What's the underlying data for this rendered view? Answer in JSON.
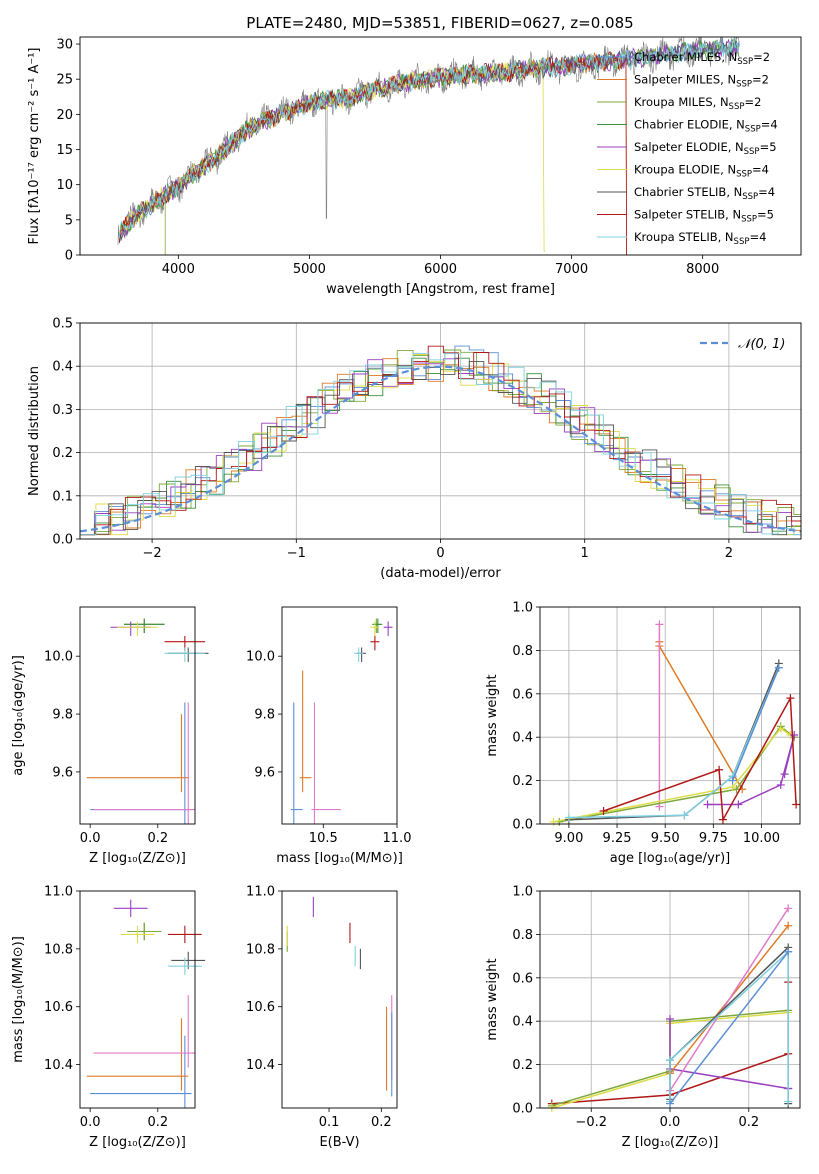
{
  "title": "PLATE=2480, MJD=53851, FIBERID=0627, z=0.085",
  "colors": {
    "Chabrier MILES": "#5b8fd6",
    "Salpeter MILES": "#e07a24",
    "Kroupa MILES": "#7ea83a",
    "Chabrier ELODIE": "#3c8f3c",
    "Salpeter ELODIE": "#9a3fc0",
    "Kroupa ELODIE": "#dcdc4a",
    "Chabrier STELIB": "#555555",
    "Salpeter STELIB": "#b01818",
    "Kroupa STELIB": "#7fd0e0",
    "pink": "#e07ac8",
    "normal": "#5b8fd6",
    "data": "#808080"
  },
  "chart_data": [
    {
      "type": "line",
      "title": "PLATE=2480, MJD=53851, FIBERID=0627, z=0.085",
      "xlabel": "wavelength [Angstrom, rest frame]",
      "ylabel": "Flux [fλ10⁻¹⁷ erg cm⁻² s⁻¹ A⁻¹]",
      "xlim": [
        3250,
        8750
      ],
      "ylim": [
        0,
        31
      ],
      "xticks": [
        "4000",
        "5000",
        "6000",
        "7000",
        "8000"
      ],
      "yticks": [
        "0",
        "5",
        "10",
        "15",
        "20",
        "25",
        "30"
      ],
      "continuum": [
        [
          3540,
          3
        ],
        [
          3700,
          6
        ],
        [
          3900,
          8.5
        ],
        [
          4050,
          10.5
        ],
        [
          4150,
          12
        ],
        [
          4300,
          14
        ],
        [
          4500,
          17.5
        ],
        [
          4700,
          19.5
        ],
        [
          4900,
          21
        ],
        [
          5100,
          22
        ],
        [
          5300,
          22.3
        ],
        [
          5500,
          23.5
        ],
        [
          5700,
          24.5
        ],
        [
          5900,
          25
        ],
        [
          6100,
          25.5
        ],
        [
          6300,
          25.8
        ],
        [
          6500,
          26
        ],
        [
          6700,
          26.5
        ],
        [
          6900,
          26.8
        ],
        [
          7100,
          27.2
        ],
        [
          7300,
          27.5
        ],
        [
          7500,
          28
        ],
        [
          7700,
          28.5
        ],
        [
          7900,
          29
        ],
        [
          8100,
          29.3
        ],
        [
          8300,
          29.5
        ]
      ],
      "legend": [
        "Chabrier MILES, N_SSP=2",
        "Salpeter MILES, N_SSP=2",
        "Kroupa MILES, N_SSP=2",
        "Chabrier ELODIE, N_SSP=4",
        "Salpeter ELODIE, N_SSP=5",
        "Kroupa ELODIE, N_SSP=4",
        "Chabrier STELIB, N_SSP=4",
        "Salpeter STELIB, N_SSP=5",
        "Kroupa STELIB, N_SSP=4"
      ],
      "legend_placement": "right",
      "grid": false
    },
    {
      "type": "line",
      "xlabel": "(data-model)/error",
      "ylabel": "Normed distribution",
      "xlim": [
        -2.5,
        2.5
      ],
      "ylim": [
        0,
        0.5
      ],
      "xticks": [
        "−2",
        "−1",
        "0",
        "1",
        "2"
      ],
      "yticks": [
        "0.0",
        "0.1",
        "0.2",
        "0.3",
        "0.4",
        "0.5"
      ],
      "legend": [
        "𝒩(0, 1)"
      ],
      "legend_placement": "top-right",
      "grid": true
    },
    {
      "type": "scatter",
      "xlabel": "Z [log₁₀(Z/Z⊙)]",
      "ylabel": "age  [log₁₀(age/yr)]",
      "xlim": [
        -0.03,
        0.31
      ],
      "ylim": [
        9.42,
        10.17
      ],
      "xticks": [
        "0.0",
        "0.2"
      ],
      "yticks": [
        "9.6",
        "9.8",
        "10.0"
      ],
      "points": [
        {
          "c": "Chabrier MILES",
          "x": 0.28,
          "y": 9.47
        },
        {
          "c": "Salpeter MILES",
          "x": 0.27,
          "y": 9.58
        },
        {
          "c": "Kroupa MILES",
          "x": 0.16,
          "y": 10.11
        },
        {
          "c": "Chabrier ELODIE",
          "x": 0.16,
          "y": 10.11
        },
        {
          "c": "Salpeter ELODIE",
          "x": 0.12,
          "y": 10.1
        },
        {
          "c": "Kroupa ELODIE",
          "x": 0.14,
          "y": 10.1
        },
        {
          "c": "Chabrier STELIB",
          "x": 0.29,
          "y": 10.01
        },
        {
          "c": "Salpeter STELIB",
          "x": 0.28,
          "y": 10.05
        },
        {
          "c": "Kroupa STELIB",
          "x": 0.28,
          "y": 10.01
        },
        {
          "c": "pink",
          "x": 0.29,
          "y": 9.47
        }
      ]
    },
    {
      "type": "scatter",
      "xlabel": "mass [log₁₀(M/M⊙)]",
      "xlim": [
        10.22,
        11.0
      ],
      "ylim": [
        9.42,
        10.17
      ],
      "xticks": [
        "10.5",
        "11.0"
      ],
      "yticks": [
        "9.6",
        "9.8",
        "10.0"
      ],
      "points": [
        {
          "c": "Chabrier MILES",
          "x": 10.3,
          "y": 9.47
        },
        {
          "c": "Salpeter MILES",
          "x": 10.36,
          "y": 9.58
        },
        {
          "c": "Kroupa MILES",
          "x": 10.86,
          "y": 10.11
        },
        {
          "c": "Chabrier ELODIE",
          "x": 10.87,
          "y": 10.11
        },
        {
          "c": "Salpeter ELODIE",
          "x": 10.94,
          "y": 10.1
        },
        {
          "c": "Kroupa ELODIE",
          "x": 10.85,
          "y": 10.1
        },
        {
          "c": "Chabrier STELIB",
          "x": 10.76,
          "y": 10.01
        },
        {
          "c": "Salpeter STELIB",
          "x": 10.85,
          "y": 10.05
        },
        {
          "c": "Kroupa STELIB",
          "x": 10.74,
          "y": 10.01
        },
        {
          "c": "pink",
          "x": 10.44,
          "y": 9.47
        }
      ]
    },
    {
      "type": "line",
      "xlabel": "age  [log₁₀(age/yr)]",
      "ylabel": "mass weight",
      "xlim": [
        8.85,
        10.2
      ],
      "ylim": [
        0,
        1
      ],
      "xticks": [
        "9.00",
        "9.25",
        "9.50",
        "9.75",
        "10.00"
      ],
      "yticks": [
        "0.0",
        "0.2",
        "0.4",
        "0.6",
        "0.8",
        "1.0"
      ],
      "series": [
        {
          "c": "Salpeter MILES",
          "x": [
            9.47,
            9.47,
            9.9
          ],
          "y": [
            0.84,
            0.82,
            0.16
          ]
        },
        {
          "c": "pink",
          "x": [
            9.47,
            9.47
          ],
          "y": [
            0.92,
            0.08
          ]
        },
        {
          "c": "Kroupa MILES",
          "x": [
            8.95,
            9.87,
            10.1,
            10.17
          ],
          "y": [
            0.01,
            0.16,
            0.45,
            0.4
          ]
        },
        {
          "c": "Kroupa ELODIE",
          "x": [
            8.92,
            9.85,
            10.1,
            10.15
          ],
          "y": [
            0.01,
            0.17,
            0.44,
            0.41
          ]
        },
        {
          "c": "Salpeter ELODIE",
          "x": [
            9.72,
            9.88,
            10.1,
            10.17,
            10.12
          ],
          "y": [
            0.09,
            0.09,
            0.18,
            0.41,
            0.23
          ]
        },
        {
          "c": "Salpeter STELIB",
          "x": [
            9.18,
            9.78,
            9.8,
            10.15,
            10.18
          ],
          "y": [
            0.06,
            0.25,
            0.02,
            0.58,
            0.09
          ]
        },
        {
          "c": "Chabrier STELIB",
          "x": [
            9.0,
            9.6,
            9.85,
            10.09
          ],
          "y": [
            0.02,
            0.04,
            0.22,
            0.74
          ]
        },
        {
          "c": "Kroupa STELIB",
          "x": [
            9.0,
            9.6,
            9.85,
            10.09
          ],
          "y": [
            0.03,
            0.04,
            0.22,
            0.72
          ]
        },
        {
          "c": "Chabrier MILES",
          "x": [
            9.85,
            10.09
          ],
          "y": [
            0.2,
            0.72
          ]
        }
      ],
      "grid": true
    },
    {
      "type": "scatter",
      "xlabel": "Z [log₁₀(Z/Z⊙)]",
      "ylabel": "mass [log₁₀(M/M⊙)]",
      "xlim": [
        -0.03,
        0.31
      ],
      "ylim": [
        10.25,
        11.0
      ],
      "xticks": [
        "0.0",
        "0.2"
      ],
      "yticks": [
        "10.4",
        "10.6",
        "10.8",
        "11.0"
      ],
      "points": [
        {
          "c": "Chabrier MILES",
          "x": 0.28,
          "y": 10.3
        },
        {
          "c": "Salpeter MILES",
          "x": 0.27,
          "y": 10.36
        },
        {
          "c": "pink",
          "x": 0.29,
          "y": 10.44
        },
        {
          "c": "Salpeter ELODIE",
          "x": 0.12,
          "y": 10.94
        },
        {
          "c": "Chabrier ELODIE",
          "x": 0.16,
          "y": 10.86
        },
        {
          "c": "Kroupa MILES",
          "x": 0.16,
          "y": 10.86
        },
        {
          "c": "Kroupa ELODIE",
          "x": 0.14,
          "y": 10.85
        },
        {
          "c": "Salpeter STELIB",
          "x": 0.28,
          "y": 10.85
        },
        {
          "c": "Chabrier STELIB",
          "x": 0.29,
          "y": 10.76
        },
        {
          "c": "Kroupa STELIB",
          "x": 0.28,
          "y": 10.74
        }
      ]
    },
    {
      "type": "scatter",
      "xlabel": "E(B-V)",
      "xlim": [
        0.01,
        0.23
      ],
      "ylim": [
        10.25,
        11.0
      ],
      "xticks": [
        "0.1",
        "0.2"
      ],
      "yticks": [
        "10.4",
        "10.6",
        "10.8",
        "11.0"
      ],
      "points": [
        {
          "c": "Kroupa MILES",
          "x": 0.02,
          "y": 10.82
        },
        {
          "c": "Kroupa ELODIE",
          "x": 0.02,
          "y": 10.84
        },
        {
          "c": "Salpeter ELODIE",
          "x": 0.07,
          "y": 10.94
        },
        {
          "c": "Salpeter STELIB",
          "x": 0.14,
          "y": 10.85
        },
        {
          "c": "Kroupa STELIB",
          "x": 0.15,
          "y": 10.77
        },
        {
          "c": "Chabrier STELIB",
          "x": 0.16,
          "y": 10.76
        },
        {
          "c": "Salpeter MILES",
          "x": 0.21,
          "y": 10.46
        },
        {
          "c": "pink",
          "x": 0.22,
          "y": 10.5
        },
        {
          "c": "Chabrier MILES",
          "x": 0.22,
          "y": 10.44
        }
      ]
    },
    {
      "type": "line",
      "xlabel": "Z [log₁₀(Z/Z⊙)]",
      "ylabel": "mass weight",
      "xlim": [
        -0.33,
        0.33
      ],
      "ylim": [
        0,
        1
      ],
      "xticks": [
        "−0.2",
        "0.0",
        "0.2"
      ],
      "yticks": [
        "0.0",
        "0.2",
        "0.4",
        "0.6",
        "0.8",
        "1.0"
      ],
      "series": [
        {
          "c": "Salpeter STELIB",
          "x": [
            -0.3,
            0,
            0.3,
            0.3
          ],
          "y": [
            0.02,
            0.06,
            0.25,
            0.58
          ]
        },
        {
          "c": "Kroupa MILES",
          "x": [
            -0.3,
            0,
            0,
            0.3
          ],
          "y": [
            0.01,
            0.17,
            0.4,
            0.45
          ]
        },
        {
          "c": "Kroupa ELODIE",
          "x": [
            -0.3,
            0,
            0,
            0.3
          ],
          "y": [
            0.0,
            0.16,
            0.39,
            0.44
          ]
        },
        {
          "c": "Salpeter ELODIE",
          "x": [
            0,
            0,
            0.3,
            0.3
          ],
          "y": [
            0.41,
            0.18,
            0.09,
            0.09
          ]
        },
        {
          "c": "Salpeter MILES",
          "x": [
            0,
            0.3
          ],
          "y": [
            0.16,
            0.84
          ]
        },
        {
          "c": "pink",
          "x": [
            0,
            0.3
          ],
          "y": [
            0.08,
            0.92
          ]
        },
        {
          "c": "Chabrier STELIB",
          "x": [
            0,
            0,
            0.3,
            0.3
          ],
          "y": [
            0.04,
            0.22,
            0.74,
            0.02
          ]
        },
        {
          "c": "Kroupa STELIB",
          "x": [
            0,
            0,
            0.3,
            0.3
          ],
          "y": [
            0.03,
            0.22,
            0.72,
            0.03
          ]
        },
        {
          "c": "Chabrier MILES",
          "x": [
            0,
            0.3
          ],
          "y": [
            0.02,
            0.72
          ]
        }
      ],
      "grid": true
    }
  ]
}
